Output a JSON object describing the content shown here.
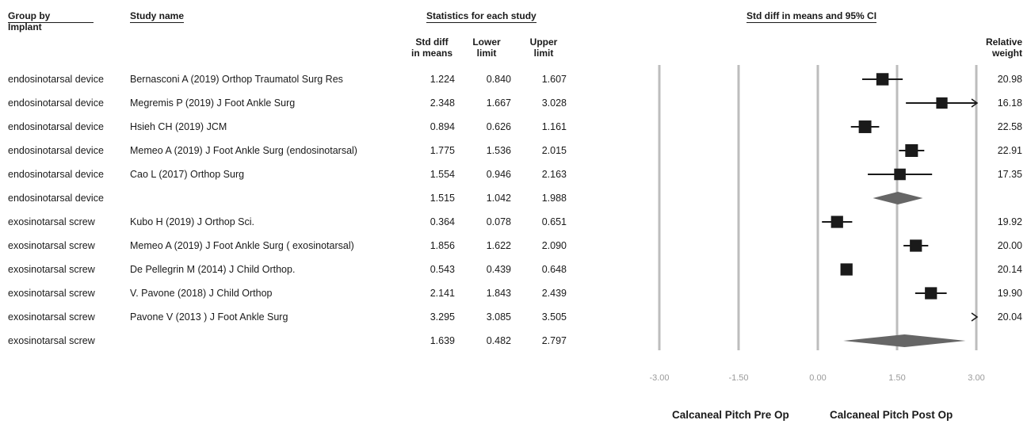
{
  "headers": {
    "group_by": "Group by",
    "group_by_sub": "Implant",
    "study_name": "Study name",
    "statistics": "Statistics for each study",
    "plot_title": "Std diff in means and 95% CI",
    "std_diff_1": "Std diff",
    "std_diff_2": "in means",
    "lower_1": "Lower",
    "lower_2": "limit",
    "upper_1": "Upper",
    "upper_2": "limit",
    "relweight_1": "Relative",
    "relweight_2": "weight"
  },
  "rows": [
    {
      "group": "endosinotarsal device",
      "study": "Bernasconi A (2019) Orthop Traumatol Surg Res",
      "smd": "1.224",
      "lower": "0.840",
      "upper": "1.607",
      "weight": "20.98"
    },
    {
      "group": "endosinotarsal device",
      "study": "Megremis P (2019) J Foot Ankle Surg",
      "smd": "2.348",
      "lower": "1.667",
      "upper": "3.028",
      "weight": "16.18"
    },
    {
      "group": "endosinotarsal device",
      "study": "Hsieh CH (2019) JCM",
      "smd": "0.894",
      "lower": "0.626",
      "upper": "1.161",
      "weight": "22.58"
    },
    {
      "group": "endosinotarsal device",
      "study": "Memeo A (2019) J Foot Ankle Surg  (endosinotarsal)",
      "smd": "1.775",
      "lower": "1.536",
      "upper": "2.015",
      "weight": "22.91"
    },
    {
      "group": "endosinotarsal device",
      "study": "Cao L (2017) Orthop Surg",
      "smd": "1.554",
      "lower": "0.946",
      "upper": "2.163",
      "weight": "17.35"
    },
    {
      "group": "endosinotarsal device",
      "study": "",
      "smd": "1.515",
      "lower": "1.042",
      "upper": "1.988",
      "weight": ""
    },
    {
      "group": "exosinotarsal screw",
      "study": "Kubo H (2019) J Orthop Sci.",
      "smd": "0.364",
      "lower": "0.078",
      "upper": "0.651",
      "weight": "19.92"
    },
    {
      "group": "exosinotarsal screw",
      "study": "Memeo A (2019) J Foot Ankle Surg  ( exosinotarsal)",
      "smd": "1.856",
      "lower": "1.622",
      "upper": "2.090",
      "weight": "20.00"
    },
    {
      "group": "exosinotarsal screw",
      "study": "De Pellegrin M (2014) J Child Orthop.",
      "smd": "0.543",
      "lower": "0.439",
      "upper": "0.648",
      "weight": "20.14"
    },
    {
      "group": "exosinotarsal screw",
      "study": "V. Pavone (2018) J Child Orthop",
      "smd": "2.141",
      "lower": "1.843",
      "upper": "2.439",
      "weight": "19.90"
    },
    {
      "group": "exosinotarsal screw",
      "study": "Pavone V (2013 ) J Foot Ankle Surg",
      "smd": "3.295",
      "lower": "3.085",
      "upper": "3.505",
      "weight": "20.04"
    },
    {
      "group": "exosinotarsal screw",
      "study": "",
      "smd": "1.639",
      "lower": "0.482",
      "upper": "2.797",
      "weight": ""
    }
  ],
  "footer": {
    "left": "Calcaneal Pitch Pre Op",
    "right": "Calcaneal Pitch Post Op"
  },
  "chart_data": {
    "type": "forest",
    "title": "Std diff in means and 95% CI",
    "xlim": [
      -3.0,
      3.0
    ],
    "ticks": [
      "-3.00",
      "-1.50",
      "0.00",
      "1.50",
      "3.00"
    ],
    "tick_values": [
      -3.0,
      -1.5,
      0.0,
      1.5,
      3.0
    ],
    "grid": true,
    "colors": {
      "marker": "#1a1a1a",
      "summary": "#666666",
      "grid": "#bdbdbd"
    },
    "points": [
      {
        "label": "Bernasconi A (2019) Orthop Traumatol Surg Res",
        "est": 1.224,
        "lo": 0.84,
        "hi": 1.607,
        "weight": 20.98
      },
      {
        "label": "Megremis P (2019) J Foot Ankle Surg",
        "est": 2.348,
        "lo": 1.667,
        "hi": 3.028,
        "weight": 16.18
      },
      {
        "label": "Hsieh CH (2019) JCM",
        "est": 0.894,
        "lo": 0.626,
        "hi": 1.161,
        "weight": 22.58
      },
      {
        "label": "Memeo A (2019) J Foot Ankle Surg  (endosinotarsal)",
        "est": 1.775,
        "lo": 1.536,
        "hi": 2.015,
        "weight": 22.91
      },
      {
        "label": "Cao L (2017) Orthop Surg",
        "est": 1.554,
        "lo": 0.946,
        "hi": 2.163,
        "weight": 17.35
      },
      {
        "label": "endosinotarsal device",
        "est": 1.515,
        "lo": 1.042,
        "hi": 1.988,
        "summary": true
      },
      {
        "label": "Kubo H (2019) J Orthop Sci.",
        "est": 0.364,
        "lo": 0.078,
        "hi": 0.651,
        "weight": 19.92
      },
      {
        "label": "Memeo A (2019) J Foot Ankle Surg  ( exosinotarsal)",
        "est": 1.856,
        "lo": 1.622,
        "hi": 2.09,
        "weight": 20.0
      },
      {
        "label": "De Pellegrin M (2014) J Child Orthop.",
        "est": 0.543,
        "lo": 0.439,
        "hi": 0.648,
        "weight": 20.14
      },
      {
        "label": "V. Pavone (2018) J Child Orthop",
        "est": 2.141,
        "lo": 1.843,
        "hi": 2.439,
        "weight": 19.9
      },
      {
        "label": "Pavone V (2013 ) J Foot Ankle Surg",
        "est": 3.295,
        "lo": 3.085,
        "hi": 3.505,
        "weight": 20.04
      },
      {
        "label": "exosinotarsal screw",
        "est": 1.639,
        "lo": 0.482,
        "hi": 2.797,
        "summary": true
      }
    ],
    "xlabel_left": "Calcaneal Pitch Pre Op",
    "xlabel_right": "Calcaneal Pitch Post Op"
  }
}
